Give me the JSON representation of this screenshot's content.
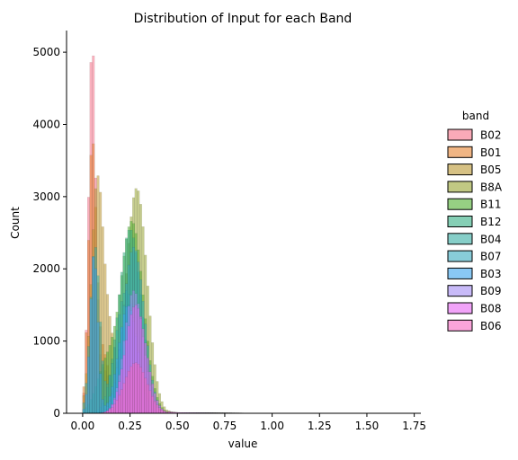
{
  "chart_data": {
    "type": "bar",
    "title": "Distribution of Input for each Band",
    "xlabel": "value",
    "ylabel": "Count",
    "xlim": [
      -0.085,
      1.785
    ],
    "ylim": [
      0,
      5300
    ],
    "xticks": [
      "0.00",
      "0.25",
      "0.50",
      "0.75",
      "1.00",
      "1.25",
      "1.50",
      "1.75"
    ],
    "yticks": [
      "0",
      "1000",
      "2000",
      "3000",
      "4000",
      "5000"
    ],
    "grid": false,
    "legend": {
      "title": "band",
      "placement": "right"
    },
    "bin_width": 0.0125,
    "series": [
      {
        "name": "B02",
        "color": "#f77189",
        "peaks": [
          [
            0.05,
            5000,
            0.018
          ],
          [
            0.11,
            600,
            0.04
          ]
        ]
      },
      {
        "name": "B01",
        "color": "#e68332",
        "peaks": [
          [
            0.05,
            3400,
            0.02
          ],
          [
            0.1,
            900,
            0.04
          ]
        ]
      },
      {
        "name": "B05",
        "color": "#bb9832",
        "peaks": [
          [
            0.075,
            2600,
            0.03
          ],
          [
            0.13,
            1200,
            0.05
          ]
        ]
      },
      {
        "name": "B8A",
        "color": "#97a431",
        "peaks": [
          [
            0.285,
            3120,
            0.055
          ]
        ]
      },
      {
        "name": "B11",
        "color": "#50b131",
        "peaks": [
          [
            0.26,
            2650,
            0.06
          ],
          [
            0.12,
            600,
            0.05
          ]
        ]
      },
      {
        "name": "B12",
        "color": "#34af84",
        "peaks": [
          [
            0.25,
            2550,
            0.06
          ]
        ]
      },
      {
        "name": "B04",
        "color": "#36ada4",
        "peaks": [
          [
            0.065,
            2300,
            0.025
          ],
          [
            0.23,
            1700,
            0.055
          ]
        ]
      },
      {
        "name": "B07",
        "color": "#38aabf",
        "peaks": [
          [
            0.27,
            2300,
            0.055
          ]
        ]
      },
      {
        "name": "B03",
        "color": "#3ba3ec",
        "peaks": [
          [
            0.06,
            2200,
            0.02
          ],
          [
            0.24,
            1500,
            0.05
          ]
        ]
      },
      {
        "name": "B09",
        "color": "#a48cf4",
        "peaks": [
          [
            0.27,
            1700,
            0.05
          ]
        ]
      },
      {
        "name": "B08",
        "color": "#e866f4",
        "peaks": [
          [
            0.28,
            1500,
            0.055
          ]
        ]
      },
      {
        "name": "B06",
        "color": "#f668c2",
        "peaks": [
          [
            0.28,
            700,
            0.06
          ]
        ]
      }
    ]
  }
}
